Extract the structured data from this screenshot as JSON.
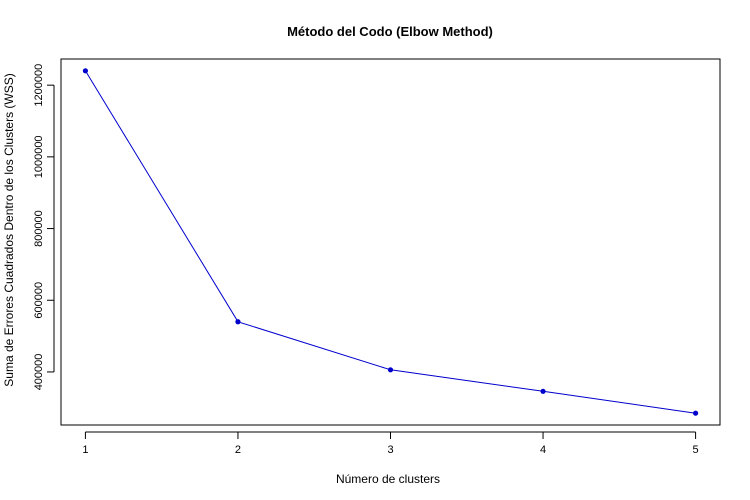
{
  "chart_data": {
    "type": "line",
    "title": "Método del Codo (Elbow Method)",
    "xlabel": "Número de clusters",
    "ylabel": "Suma de Errores Cuadrados Dentro de los Clusters (WSS)",
    "x": [
      1,
      2,
      3,
      4,
      5
    ],
    "xticks": [
      1,
      2,
      3,
      4,
      5
    ],
    "yticks": [
      400000,
      600000,
      800000,
      1000000,
      1200000
    ],
    "xlim": [
      0.84,
      5.16
    ],
    "ylim": [
      252000,
      1273000
    ],
    "grid": false,
    "legend": "none",
    "series": [
      {
        "values": [
          1240000,
          540000,
          406000,
          346000,
          285000
        ],
        "color": "#0000cd"
      }
    ]
  }
}
